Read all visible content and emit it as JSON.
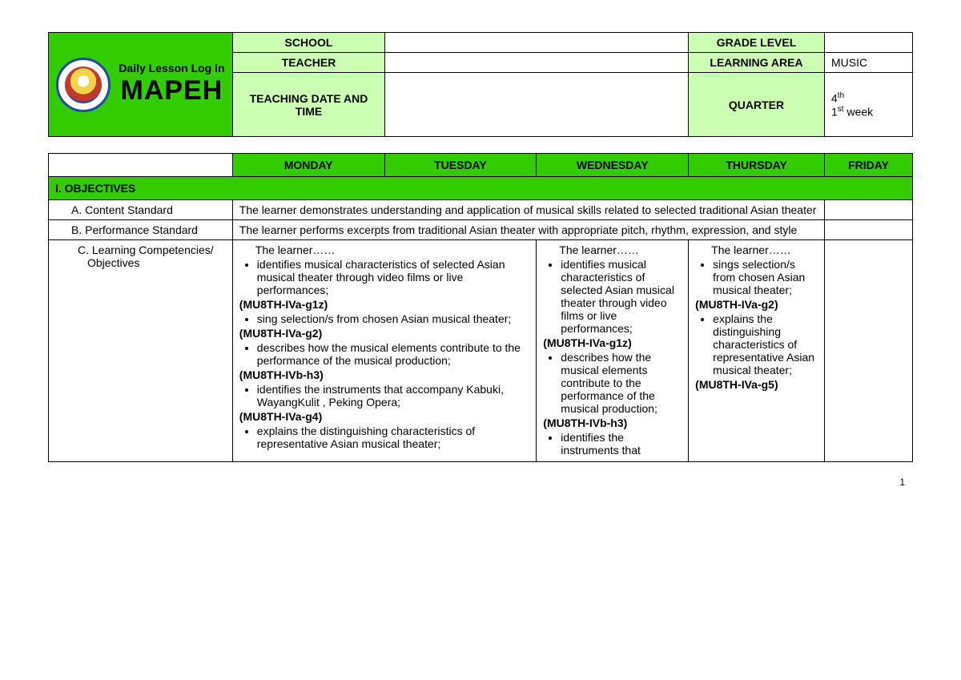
{
  "header": {
    "title_small": "Daily Lesson Log in",
    "title_big": "MAPEH",
    "rows": [
      {
        "label": "SCHOOL",
        "value": "",
        "label2": "GRADE LEVEL",
        "value2": ""
      },
      {
        "label": "TEACHER",
        "value": "",
        "label2": "LEARNING AREA",
        "value2": "MUSIC"
      },
      {
        "label": "TEACHING DATE AND TIME",
        "value": "",
        "label2": "QUARTER",
        "value2_html": "4<sup>th</sup><br>1<sup>st</sup> week"
      }
    ]
  },
  "days": [
    "MONDAY",
    "TUESDAY",
    "WEDNESDAY",
    "THURSDAY",
    "FRIDAY"
  ],
  "objectives_title": "I. OBJECTIVES",
  "rows": {
    "content_standard": {
      "label": "A.  Content Standard",
      "text": "The learner demonstrates understanding and application of musical skills related to selected traditional Asian theater"
    },
    "performance_standard": {
      "label": "B.  Performance Standard",
      "text": "The learner performs excerpts from traditional Asian theater with appropriate pitch, rhythm, expression, and style"
    },
    "competencies": {
      "label": "C.  Learning Competencies/",
      "label2": "Objectives",
      "mon_tue": {
        "lead": "The learner……",
        "items": [
          {
            "text": "identifies musical characteristics of selected Asian musical theater through video films or live performances;",
            "code": "(MU8TH-IVa-g1z)"
          },
          {
            "text": "sing selection/s from chosen Asian musical theater;",
            "code": "(MU8TH-IVa-g2)"
          },
          {
            "text": "describes how the musical elements contribute to the performance of the musical production;",
            "code": "(MU8TH-IVb-h3)"
          },
          {
            "text": "identifies the instruments that accompany Kabuki, WayangKulit , Peking Opera;",
            "code": "(MU8TH-IVa-g4)"
          },
          {
            "text": "explains the distinguishing characteristics of representative Asian musical theater;",
            "code": ""
          }
        ]
      },
      "wed": {
        "lead": "The learner……",
        "items": [
          {
            "text": "identifies musical characteristics of selected Asian musical theater through video films or live performances;",
            "code": "(MU8TH-IVa-g1z)"
          },
          {
            "text": "describes how the musical elements contribute to the performance of the musical production;",
            "code": "(MU8TH-IVb-h3)"
          },
          {
            "text": "identifies the instruments that",
            "code": ""
          }
        ]
      },
      "thu": {
        "lead": "The learner……",
        "items": [
          {
            "text": "sings selection/s from chosen Asian musical theater;",
            "code": "(MU8TH-IVa-g2)"
          },
          {
            "text": "explains the distinguishing characteristics of representative Asian musical theater;",
            "code": "(MU8TH-IVa-g5)"
          }
        ]
      }
    }
  },
  "page_number": "1",
  "colors": {
    "brand_green": "#33cc00",
    "light_green": "#ccffb3",
    "border": "#000000"
  }
}
